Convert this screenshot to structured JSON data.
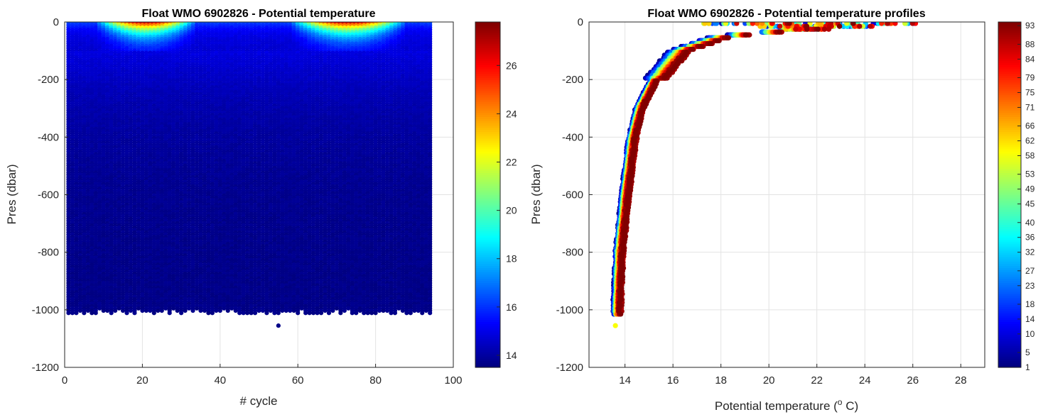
{
  "figure": {
    "background": "#ffffff"
  },
  "chart_data": [
    {
      "type": "scatter",
      "title": "Float WMO 6902826 - Potential temperature",
      "xlabel": "# cycle",
      "ylabel": "Pres (dbar)",
      "xlim": [
        0,
        100
      ],
      "ylim": [
        -1200,
        0
      ],
      "xticks": [
        0,
        20,
        40,
        60,
        80,
        100
      ],
      "yticks": [
        0,
        -200,
        -400,
        -600,
        -800,
        -1000,
        -1200
      ],
      "grid": true,
      "cycles": [
        1,
        94
      ],
      "deep_bottom_pressure": -1000,
      "outlier_point": {
        "x": 55,
        "y": -1055
      },
      "warm_surface_cycles": [
        [
          10,
          32
        ],
        [
          60,
          86
        ]
      ],
      "colorbar": {
        "label": "",
        "range": [
          13.5,
          27.8
        ],
        "ticks": [
          14,
          16,
          18,
          20,
          22,
          24,
          26
        ],
        "colormap": "jet"
      }
    },
    {
      "type": "scatter",
      "title": "Float WMO 6902826 - Potential temperature profiles",
      "xlabel": "Potential temperature (",
      "xlabel_sup": "o",
      "xlabel_tail": " C)",
      "ylabel": "Pres (dbar)",
      "xlim": [
        12.5,
        29
      ],
      "ylim": [
        -1200,
        0
      ],
      "xticks": [
        14,
        16,
        18,
        20,
        22,
        24,
        26,
        28
      ],
      "yticks": [
        0,
        -200,
        -400,
        -600,
        -800,
        -1000,
        -1200
      ],
      "grid": true,
      "profile_envelope": [
        {
          "p": -1020,
          "t": 13.65
        },
        {
          "p": -800,
          "t": 13.75
        },
        {
          "p": -600,
          "t": 14.0
        },
        {
          "p": -400,
          "t": 14.3
        },
        {
          "p": -300,
          "t": 14.6
        },
        {
          "p": -200,
          "t": 15.2
        },
        {
          "p": -100,
          "t": 16.2
        },
        {
          "p": -50,
          "t": 18.0
        },
        {
          "p": -20,
          "t": 22.0
        }
      ],
      "colorbar": {
        "label": "",
        "range": [
          1,
          94
        ],
        "ticks": [
          1,
          5,
          10,
          14,
          18,
          23,
          27,
          32,
          36,
          40,
          45,
          49,
          53,
          58,
          62,
          66,
          71,
          75,
          79,
          84,
          88,
          93
        ],
        "colormap": "jet"
      }
    }
  ]
}
